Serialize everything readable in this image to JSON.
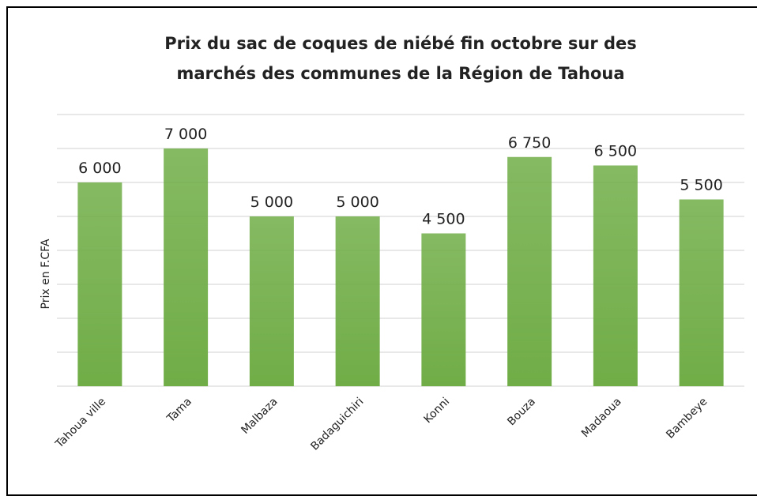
{
  "chart_data": {
    "type": "bar",
    "title": "Prix du sac de coques de niébé fin octobre sur des marchés des communes de la Région de Tahoua",
    "y_label": "Prix en F.CFA",
    "categories": [
      "Tahoua ville",
      "Tama",
      "Malbaza",
      "Badaguichiri",
      "Konni",
      "Bouza",
      "Madaoua",
      "Bambeye"
    ],
    "values": [
      6000,
      7000,
      5000,
      5000,
      4500,
      6750,
      6500,
      5500
    ],
    "value_labels": [
      "6 000",
      "7 000",
      "5 000",
      "5 000",
      "4 500",
      "6 750",
      "6 500",
      "5 500"
    ],
    "color": "#70ad47",
    "ylim": [
      0,
      8000
    ],
    "yticks": [
      0,
      1000,
      2000,
      3000,
      4000,
      5000,
      6000,
      7000,
      8000
    ],
    "grid": true
  }
}
